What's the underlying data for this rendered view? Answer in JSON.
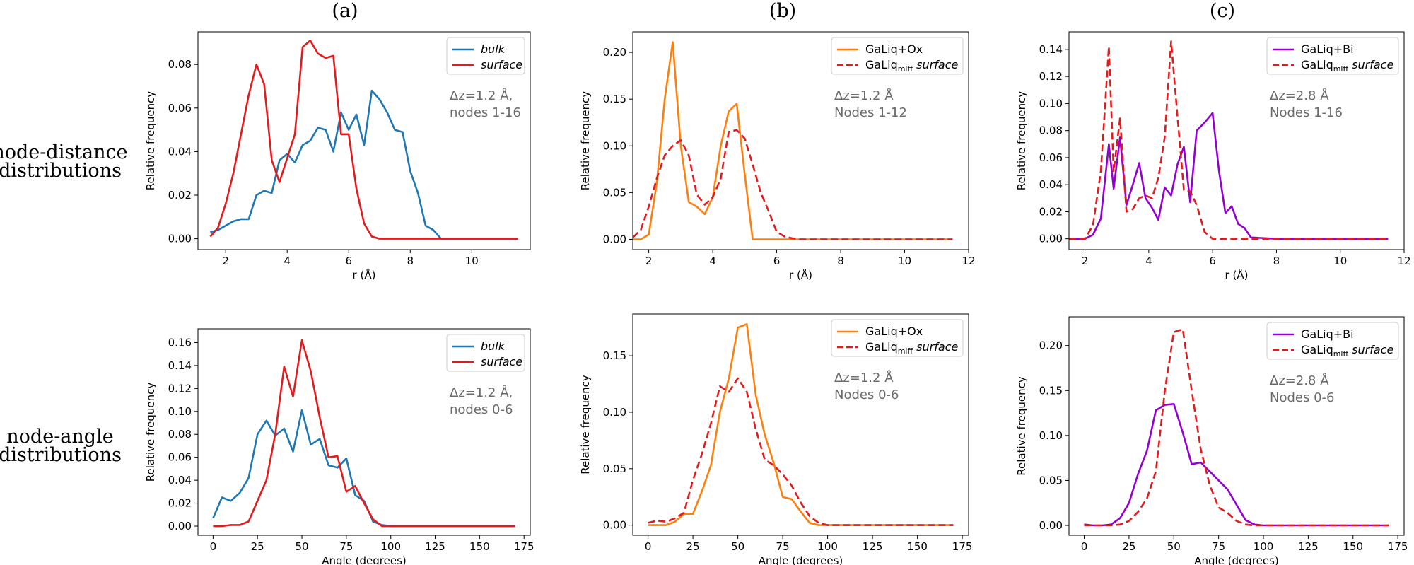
{
  "columns": [
    "(a)",
    "(b)",
    "(c)"
  ],
  "rows": [
    [
      "node-distance",
      "distributions"
    ],
    [
      "node-angle",
      "distributions"
    ]
  ],
  "colors": {
    "bulk": "#1f77b4",
    "surface": "#e41a1c",
    "GaLiq+Ox": "#ff7f0e",
    "GaLiq+Bi": "#9400d3",
    "mlff_surface": "#e41a1c"
  },
  "chart_data": [
    {
      "id": "a1",
      "type": "line",
      "xlabel": "r (Å)",
      "ylabel": "Relative frequency",
      "xlim": [
        1.1,
        11.9
      ],
      "ylim": [
        -0.005,
        0.095
      ],
      "xticks": [
        2,
        4,
        6,
        8,
        10
      ],
      "yticks": [
        0.0,
        0.02,
        0.04,
        0.06,
        0.08
      ],
      "ytick_decimals": 2,
      "legend": "top-right",
      "annotation": [
        "Δz=1.2 Å,",
        "nodes 1-16"
      ],
      "series": [
        {
          "name": "bulk",
          "color": "#1f77b4",
          "dash": "solid",
          "x": [
            1.5,
            1.75,
            2.0,
            2.25,
            2.5,
            2.75,
            3.0,
            3.25,
            3.5,
            3.75,
            4.0,
            4.25,
            4.5,
            4.75,
            5.0,
            5.25,
            5.5,
            5.75,
            6.0,
            6.25,
            6.5,
            6.75,
            7.0,
            7.25,
            7.5,
            7.75,
            8.0,
            8.25,
            8.5,
            8.75,
            9.0,
            9.25,
            9.5,
            9.75,
            10.0,
            10.25,
            10.5,
            10.75,
            11.0,
            11.25,
            11.5
          ],
          "y": [
            0.003,
            0.004,
            0.006,
            0.008,
            0.009,
            0.009,
            0.02,
            0.022,
            0.021,
            0.036,
            0.039,
            0.035,
            0.043,
            0.045,
            0.051,
            0.05,
            0.04,
            0.058,
            0.05,
            0.057,
            0.043,
            0.068,
            0.064,
            0.058,
            0.05,
            0.049,
            0.031,
            0.021,
            0.006,
            0.004,
            0.0,
            0.0,
            0.0,
            0.0,
            0.0,
            0.0,
            0.0,
            0.0,
            0.0,
            0.0,
            0.0
          ]
        },
        {
          "name": "surface",
          "color": "#e41a1c",
          "dash": "solid",
          "x": [
            1.5,
            1.75,
            2.0,
            2.25,
            2.5,
            2.75,
            3.0,
            3.25,
            3.5,
            3.75,
            4.0,
            4.25,
            4.5,
            4.75,
            5.0,
            5.25,
            5.5,
            5.75,
            6.0,
            6.25,
            6.5,
            6.75,
            7.0,
            7.25,
            7.5,
            7.75,
            8.0,
            8.25,
            8.5,
            8.75,
            9.0,
            9.25,
            9.5,
            9.75,
            10.0,
            10.25,
            10.5,
            10.75,
            11.0,
            11.25,
            11.5
          ],
          "y": [
            0.001,
            0.005,
            0.016,
            0.03,
            0.048,
            0.066,
            0.08,
            0.071,
            0.036,
            0.026,
            0.037,
            0.048,
            0.088,
            0.091,
            0.085,
            0.083,
            0.084,
            0.048,
            0.048,
            0.023,
            0.007,
            0.001,
            0.0,
            0.0,
            0.0,
            0.0,
            0.0,
            0.0,
            0.0,
            0.0,
            0.0,
            0.0,
            0.0,
            0.0,
            0.0,
            0.0,
            0.0,
            0.0,
            0.0,
            0.0,
            0.0
          ]
        }
      ]
    },
    {
      "id": "b1",
      "type": "line",
      "xlabel": "r (Å)",
      "ylabel": "Relative frequency",
      "xlim": [
        1.5,
        12.0
      ],
      "ylim": [
        -0.011,
        0.222
      ],
      "xticks": [
        2,
        4,
        6,
        8,
        10,
        12
      ],
      "yticks": [
        0.0,
        0.05,
        0.1,
        0.15,
        0.2
      ],
      "ytick_decimals": 2,
      "legend": "top-right",
      "annotation": [
        "Δz=1.2 Å",
        "Nodes 1-12"
      ],
      "series": [
        {
          "name": "GaLiq+Ox",
          "color": "#ff7f0e",
          "dash": "solid",
          "x": [
            1.5,
            1.75,
            2.0,
            2.25,
            2.5,
            2.75,
            3.0,
            3.25,
            3.5,
            3.75,
            4.0,
            4.25,
            4.5,
            4.75,
            5.0,
            5.25,
            5.5,
            5.75,
            6.0,
            6.5,
            7.0,
            8.0,
            9.0,
            10.0,
            11.0,
            11.5
          ],
          "y": [
            0.0,
            0.0,
            0.005,
            0.06,
            0.15,
            0.211,
            0.1,
            0.04,
            0.035,
            0.027,
            0.045,
            0.1,
            0.137,
            0.145,
            0.07,
            0.0,
            0.0,
            0.0,
            0.0,
            0.0,
            0.0,
            0.0,
            0.0,
            0.0,
            0.0,
            0.0
          ]
        },
        {
          "name": "GaLiqmlff surface",
          "color": "#e41a1c",
          "dash": "dashed",
          "x": [
            1.5,
            1.75,
            2.0,
            2.25,
            2.5,
            2.75,
            3.0,
            3.25,
            3.5,
            3.75,
            4.0,
            4.25,
            4.5,
            4.75,
            5.0,
            5.25,
            5.5,
            5.75,
            6.0,
            6.25,
            6.5,
            6.75,
            7.0,
            8.0,
            9.0,
            10.0,
            11.0,
            11.5
          ],
          "y": [
            0.002,
            0.01,
            0.035,
            0.065,
            0.09,
            0.1,
            0.106,
            0.09,
            0.048,
            0.037,
            0.045,
            0.065,
            0.115,
            0.117,
            0.108,
            0.08,
            0.05,
            0.03,
            0.008,
            0.003,
            0.001,
            0.0,
            0.0,
            0.0,
            0.0,
            0.0,
            0.0,
            0.0
          ]
        }
      ]
    },
    {
      "id": "c1",
      "type": "line",
      "xlabel": "r (Å)",
      "ylabel": "Relative frequency",
      "xlim": [
        1.5,
        12.0
      ],
      "ylim": [
        -0.008,
        0.153
      ],
      "xticks": [
        2,
        4,
        6,
        8,
        10,
        12
      ],
      "yticks": [
        0.0,
        0.02,
        0.04,
        0.06,
        0.08,
        0.1,
        0.12,
        0.14
      ],
      "ytick_decimals": 2,
      "legend": "top-right",
      "annotation": [
        "Δz=2.8 Å",
        "Nodes 1-16"
      ],
      "series": [
        {
          "name": "GaLiq+Bi",
          "color": "#9400d3",
          "dash": "solid",
          "x": [
            1.5,
            2.0,
            2.25,
            2.5,
            2.75,
            2.9,
            3.1,
            3.3,
            3.5,
            3.7,
            3.9,
            4.1,
            4.3,
            4.5,
            4.7,
            4.9,
            5.1,
            5.3,
            5.5,
            5.75,
            6.0,
            6.2,
            6.4,
            6.6,
            6.8,
            7.0,
            7.2,
            8.0,
            9.0,
            10.0,
            11.0,
            11.5
          ],
          "y": [
            0.0,
            0.0,
            0.003,
            0.015,
            0.07,
            0.037,
            0.075,
            0.025,
            0.04,
            0.056,
            0.03,
            0.023,
            0.014,
            0.038,
            0.032,
            0.055,
            0.068,
            0.027,
            0.08,
            0.086,
            0.093,
            0.05,
            0.019,
            0.024,
            0.011,
            0.008,
            0.001,
            0.0,
            0.0,
            0.0,
            0.0,
            0.0
          ]
        },
        {
          "name": "GaLiqmlff surface",
          "color": "#e41a1c",
          "dash": "dashed",
          "x": [
            1.5,
            2.0,
            2.25,
            2.5,
            2.75,
            2.9,
            3.1,
            3.3,
            3.5,
            3.7,
            3.9,
            4.1,
            4.3,
            4.5,
            4.7,
            4.9,
            5.1,
            5.3,
            5.5,
            5.75,
            6.0,
            6.25,
            6.5,
            7.0,
            8.0,
            9.0,
            10.0,
            11.0,
            11.5
          ],
          "y": [
            0.0,
            0.0,
            0.01,
            0.05,
            0.142,
            0.05,
            0.089,
            0.02,
            0.022,
            0.03,
            0.032,
            0.03,
            0.045,
            0.075,
            0.146,
            0.09,
            0.036,
            0.035,
            0.025,
            0.005,
            0.0,
            0.0,
            0.0,
            0.0,
            0.0,
            0.0,
            0.0,
            0.0,
            0.0
          ]
        }
      ]
    },
    {
      "id": "a2",
      "type": "line",
      "xlabel": "Angle (degrees)",
      "ylabel": "Relative frequency",
      "xlim": [
        -8.5,
        178.5
      ],
      "ylim": [
        -0.008,
        0.172
      ],
      "xticks": [
        0,
        25,
        50,
        75,
        100,
        125,
        150,
        175
      ],
      "yticks": [
        0.0,
        0.02,
        0.04,
        0.06,
        0.08,
        0.1,
        0.12,
        0.14,
        0.16
      ],
      "ytick_decimals": 2,
      "legend": "top-right",
      "annotation": [
        "Δz=1.2 Å,",
        "nodes 0-6"
      ],
      "series": [
        {
          "name": "bulk",
          "color": "#1f77b4",
          "dash": "solid",
          "x": [
            0,
            5,
            10,
            15,
            20,
            25,
            30,
            35,
            40,
            45,
            50,
            55,
            60,
            65,
            70,
            75,
            80,
            85,
            90,
            95,
            100,
            110,
            120,
            130,
            140,
            150,
            160,
            170
          ],
          "y": [
            0.007,
            0.025,
            0.022,
            0.029,
            0.042,
            0.08,
            0.092,
            0.079,
            0.085,
            0.065,
            0.101,
            0.071,
            0.076,
            0.053,
            0.051,
            0.059,
            0.027,
            0.022,
            0.004,
            0.001,
            0.0,
            0.0,
            0.0,
            0.0,
            0.0,
            0.0,
            0.0,
            0.0
          ]
        },
        {
          "name": "surface",
          "color": "#e41a1c",
          "dash": "solid",
          "x": [
            0,
            5,
            10,
            15,
            20,
            25,
            30,
            35,
            40,
            45,
            50,
            55,
            60,
            65,
            70,
            75,
            80,
            85,
            90,
            95,
            100,
            110,
            120,
            130,
            140,
            150,
            160,
            170
          ],
          "y": [
            0.0,
            0.0,
            0.001,
            0.001,
            0.004,
            0.022,
            0.04,
            0.08,
            0.139,
            0.113,
            0.162,
            0.135,
            0.095,
            0.06,
            0.061,
            0.03,
            0.035,
            0.02,
            0.006,
            0.0,
            0.0,
            0.0,
            0.0,
            0.0,
            0.0,
            0.0,
            0.0,
            0.0
          ]
        }
      ]
    },
    {
      "id": "b2",
      "type": "line",
      "xlabel": "Angle (degrees)",
      "ylabel": "Relative frequency",
      "xlim": [
        -8.5,
        178.5
      ],
      "ylim": [
        -0.009,
        0.187
      ],
      "xticks": [
        0,
        25,
        50,
        75,
        100,
        125,
        150,
        175
      ],
      "yticks": [
        0.0,
        0.05,
        0.1,
        0.15
      ],
      "ytick_decimals": 2,
      "legend": "top-right",
      "annotation": [
        "Δz=1.2 Å",
        "Nodes 0-6"
      ],
      "series": [
        {
          "name": "GaLiq+Ox",
          "color": "#ff7f0e",
          "dash": "solid",
          "x": [
            0,
            5,
            10,
            15,
            20,
            25,
            30,
            35,
            40,
            45,
            50,
            55,
            60,
            65,
            70,
            75,
            80,
            85,
            90,
            95,
            100,
            110,
            120,
            130,
            140,
            150,
            160,
            170
          ],
          "y": [
            0.0,
            0.0,
            0.0,
            0.003,
            0.01,
            0.01,
            0.03,
            0.053,
            0.1,
            0.13,
            0.175,
            0.178,
            0.115,
            0.08,
            0.055,
            0.025,
            0.023,
            0.012,
            0.002,
            0.0,
            0.0,
            0.0,
            0.0,
            0.0,
            0.0,
            0.0,
            0.0,
            0.0
          ]
        },
        {
          "name": "GaLiqmlff surface",
          "color": "#e41a1c",
          "dash": "dashed",
          "x": [
            0,
            5,
            10,
            15,
            20,
            25,
            30,
            35,
            40,
            45,
            50,
            55,
            60,
            65,
            70,
            75,
            80,
            85,
            90,
            95,
            100,
            110,
            120,
            130,
            140,
            150,
            160,
            170
          ],
          "y": [
            0.002,
            0.004,
            0.003,
            0.006,
            0.011,
            0.04,
            0.063,
            0.09,
            0.123,
            0.118,
            0.13,
            0.118,
            0.085,
            0.058,
            0.053,
            0.045,
            0.035,
            0.02,
            0.008,
            0.002,
            0.0,
            0.0,
            0.0,
            0.0,
            0.0,
            0.0,
            0.0,
            0.0
          ]
        }
      ]
    },
    {
      "id": "c2",
      "type": "line",
      "xlabel": "Angle (degrees)",
      "ylabel": "Relative frequency",
      "xlim": [
        -8.5,
        178.5
      ],
      "ylim": [
        -0.011,
        0.232
      ],
      "xticks": [
        0,
        25,
        50,
        75,
        100,
        125,
        150,
        175
      ],
      "yticks": [
        0.0,
        0.05,
        0.1,
        0.15,
        0.2
      ],
      "ytick_decimals": 2,
      "legend": "top-right",
      "annotation": [
        "Δz=2.8 Å",
        "Nodes 0-6"
      ],
      "series": [
        {
          "name": "GaLiq+Bi",
          "color": "#9400d3",
          "dash": "solid",
          "x": [
            0,
            5,
            10,
            15,
            20,
            25,
            30,
            35,
            40,
            45,
            50,
            55,
            60,
            65,
            70,
            75,
            80,
            85,
            90,
            95,
            100,
            110,
            120,
            130,
            140,
            150,
            160,
            170
          ],
          "y": [
            0.001,
            0.0,
            0.0,
            0.001,
            0.008,
            0.025,
            0.057,
            0.083,
            0.128,
            0.134,
            0.135,
            0.103,
            0.068,
            0.07,
            0.06,
            0.05,
            0.04,
            0.023,
            0.006,
            0.001,
            0.0,
            0.0,
            0.0,
            0.0,
            0.0,
            0.0,
            0.0,
            0.0
          ]
        },
        {
          "name": "GaLiqmlff surface",
          "color": "#e41a1c",
          "dash": "dashed",
          "x": [
            0,
            5,
            10,
            15,
            20,
            25,
            30,
            35,
            40,
            45,
            50,
            55,
            60,
            65,
            70,
            75,
            80,
            85,
            90,
            95,
            100,
            110,
            120,
            130,
            140,
            150,
            160,
            170
          ],
          "y": [
            0.0,
            0.0,
            0.0,
            0.0,
            0.001,
            0.005,
            0.015,
            0.03,
            0.06,
            0.15,
            0.215,
            0.218,
            0.15,
            0.085,
            0.045,
            0.02,
            0.014,
            0.005,
            0.001,
            0.0,
            0.0,
            0.0,
            0.0,
            0.0,
            0.0,
            0.0,
            0.0,
            0.0
          ]
        }
      ]
    }
  ]
}
